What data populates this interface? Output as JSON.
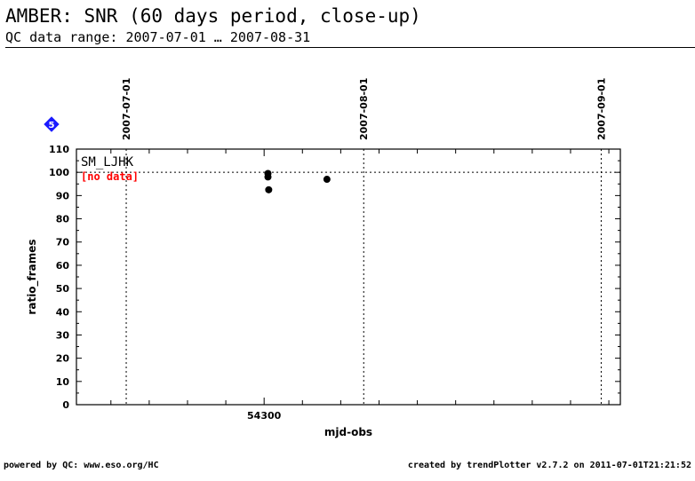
{
  "header": {
    "title": "AMBER: SNR (60 days period, close-up)",
    "subtitle": "QC data range: 2007-07-01 … 2007-08-31"
  },
  "footer": {
    "left": "powered by QC: www.eso.org/HC",
    "right": "created by trendPlotter v2.7.2 on 2011-07-01T21:21:52"
  },
  "badge": {
    "label": "5",
    "color": "#1a1aff",
    "icon": "diamond-icon"
  },
  "chart_data": {
    "type": "scatter",
    "title": "",
    "xlabel": "mjd-obs",
    "ylabel": "ratio_frames",
    "xlim": [
      54275.5,
      54346.5
    ],
    "ylim": [
      0,
      110
    ],
    "x_ticks": [
      54300
    ],
    "y_ticks": [
      0,
      10,
      20,
      30,
      40,
      50,
      60,
      70,
      80,
      90,
      100,
      110
    ],
    "reference_line": {
      "y": 100,
      "style": "dotted"
    },
    "date_markers": [
      {
        "label": "2007-07-01",
        "x": 54282
      },
      {
        "label": "2007-08-01",
        "x": 54313
      },
      {
        "label": "2007-09-01",
        "x": 54344
      }
    ],
    "series": [
      {
        "name": "SM_LJHK",
        "color": "#000000",
        "note": "[no data]",
        "note_color": "#ff0000",
        "points": [
          {
            "x": 54300.5,
            "y": 99.5
          },
          {
            "x": 54300.5,
            "y": 98.0
          },
          {
            "x": 54300.6,
            "y": 92.5
          },
          {
            "x": 54308.2,
            "y": 97.0
          }
        ]
      }
    ],
    "grid": false
  }
}
